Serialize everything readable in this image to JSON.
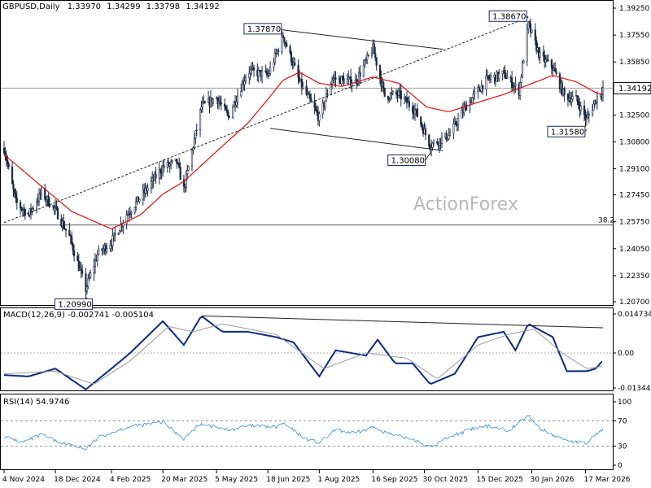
{
  "header": {
    "symbol": "GBPUSD,Daily",
    "open": "1.33970",
    "high": "1.34299",
    "low": "1.33798",
    "close": "1.34192"
  },
  "watermark": "ActionForex",
  "colors": {
    "candles": "#1a2a44",
    "ma": "#e01010",
    "macd": "#0b2a80",
    "signal": "#9a9a9a",
    "rsi": "#3a8fd0",
    "trendlines": "#222222"
  },
  "chart_data": [
    {
      "type": "candlestick",
      "title": "GBPUSD,Daily",
      "ylim": [
        1.195,
        1.395
      ],
      "yticks": [
        "1.39250",
        "1.37550",
        "1.35850",
        "1.34150",
        "1.32500",
        "1.30800",
        "1.29100",
        "1.27450",
        "1.25750",
        "1.24050",
        "1.22350",
        "1.20700"
      ],
      "last_price": "1.34192",
      "fib_level": {
        "label": "38.2",
        "value": 1.2555
      },
      "annotations": [
        {
          "text": "1.37870",
          "date": "2025-07-01",
          "value": 1.3787
        },
        {
          "text": "1.38670",
          "date": "2026-01-27",
          "value": 1.3867
        },
        {
          "text": "1.30080",
          "date": "2025-11-04",
          "value": 1.3008
        },
        {
          "text": "1.31580",
          "date": "2026-03-18",
          "value": 1.3158
        },
        {
          "text": "1.20990",
          "date": "2025-01-13",
          "value": 1.2099
        }
      ],
      "close_path": [
        [
          "2024-11-04",
          1.304
        ],
        [
          "2024-11-14",
          1.27
        ],
        [
          "2024-11-25",
          1.262
        ],
        [
          "2024-12-06",
          1.276
        ],
        [
          "2024-12-18",
          1.265
        ],
        [
          "2024-12-30",
          1.248
        ],
        [
          "2025-01-13",
          1.215
        ],
        [
          "2025-01-23",
          1.237
        ],
        [
          "2025-02-04",
          1.245
        ],
        [
          "2025-02-17",
          1.262
        ],
        [
          "2025-03-03",
          1.275
        ],
        [
          "2025-03-20",
          1.292
        ],
        [
          "2025-04-01",
          1.295
        ],
        [
          "2025-04-07",
          1.278
        ],
        [
          "2025-04-22",
          1.33
        ],
        [
          "2025-05-05",
          1.336
        ],
        [
          "2025-05-15",
          1.324
        ],
        [
          "2025-06-01",
          1.353
        ],
        [
          "2025-06-18",
          1.35
        ],
        [
          "2025-07-01",
          1.375
        ],
        [
          "2025-07-15",
          1.346
        ],
        [
          "2025-08-01",
          1.323
        ],
        [
          "2025-08-12",
          1.348
        ],
        [
          "2025-09-01",
          1.346
        ],
        [
          "2025-09-16",
          1.367
        ],
        [
          "2025-09-26",
          1.337
        ],
        [
          "2025-10-08",
          1.338
        ],
        [
          "2025-10-22",
          1.328
        ],
        [
          "2025-11-04",
          1.306
        ],
        [
          "2025-11-20",
          1.312
        ],
        [
          "2025-12-05",
          1.331
        ],
        [
          "2025-12-22",
          1.347
        ],
        [
          "2026-01-06",
          1.351
        ],
        [
          "2026-01-19",
          1.34
        ],
        [
          "2026-01-27",
          1.382
        ],
        [
          "2026-02-06",
          1.362
        ],
        [
          "2026-02-17",
          1.355
        ],
        [
          "2026-02-27",
          1.337
        ],
        [
          "2026-03-09",
          1.335
        ],
        [
          "2026-03-18",
          1.322
        ],
        [
          "2026-03-26",
          1.335
        ],
        [
          "2026-04-01",
          1.342
        ]
      ],
      "ma_path": [
        [
          "2024-11-04",
          1.3
        ],
        [
          "2024-12-06",
          1.28
        ],
        [
          "2025-01-01",
          1.264
        ],
        [
          "2025-02-04",
          1.253
        ],
        [
          "2025-03-01",
          1.262
        ],
        [
          "2025-03-20",
          1.275
        ],
        [
          "2025-04-07",
          1.283
        ],
        [
          "2025-05-05",
          1.302
        ],
        [
          "2025-06-01",
          1.32
        ],
        [
          "2025-06-18",
          1.335
        ],
        [
          "2025-07-01",
          1.347
        ],
        [
          "2025-07-15",
          1.352
        ],
        [
          "2025-08-01",
          1.345
        ],
        [
          "2025-08-20",
          1.343
        ],
        [
          "2025-09-16",
          1.349
        ],
        [
          "2025-10-08",
          1.345
        ],
        [
          "2025-11-01",
          1.33
        ],
        [
          "2025-11-20",
          1.327
        ],
        [
          "2025-12-15",
          1.333
        ],
        [
          "2026-01-06",
          1.338
        ],
        [
          "2026-01-27",
          1.344
        ],
        [
          "2026-02-17",
          1.35
        ],
        [
          "2026-03-09",
          1.346
        ],
        [
          "2026-03-26",
          1.339
        ],
        [
          "2026-04-01",
          1.338
        ]
      ],
      "trendlines": [
        {
          "from": [
            "2024-11-04",
            1.257
          ],
          "to": [
            "2026-01-27",
            1.3867
          ],
          "style": "dotted"
        },
        {
          "from": [
            "2025-07-01",
            1.3787
          ],
          "to": [
            "2025-11-15",
            1.3665
          ],
          "style": "solid"
        },
        {
          "from": [
            "2025-06-20",
            1.3165
          ],
          "to": [
            "2025-11-15",
            1.3025
          ],
          "style": "solid"
        }
      ]
    },
    {
      "type": "line",
      "title": "MACD(12,26,9) -0.002741 -0.005104",
      "yticks": [
        "0.014734",
        "0.00",
        "-0.013442"
      ],
      "ylim": [
        -0.0175,
        0.0175
      ],
      "series": [
        {
          "name": "MACD",
          "points": [
            [
              "2024-11-04",
              -0.0085
            ],
            [
              "2024-11-25",
              -0.009
            ],
            [
              "2024-12-18",
              -0.006
            ],
            [
              "2025-01-13",
              -0.014
            ],
            [
              "2025-02-04",
              -0.006
            ],
            [
              "2025-02-20",
              0.0
            ],
            [
              "2025-03-20",
              0.012
            ],
            [
              "2025-04-07",
              0.003
            ],
            [
              "2025-04-22",
              0.014
            ],
            [
              "2025-05-10",
              0.008
            ],
            [
              "2025-06-01",
              0.008
            ],
            [
              "2025-06-25",
              0.006
            ],
            [
              "2025-07-10",
              0.004
            ],
            [
              "2025-08-01",
              -0.009
            ],
            [
              "2025-08-15",
              0.001
            ],
            [
              "2025-09-10",
              -0.001
            ],
            [
              "2025-09-20",
              0.005
            ],
            [
              "2025-10-05",
              -0.004
            ],
            [
              "2025-10-20",
              -0.004
            ],
            [
              "2025-11-04",
              -0.012
            ],
            [
              "2025-11-25",
              -0.008
            ],
            [
              "2025-12-15",
              0.006
            ],
            [
              "2026-01-06",
              0.008
            ],
            [
              "2026-01-16",
              0.001
            ],
            [
              "2026-01-27",
              0.011
            ],
            [
              "2026-02-17",
              0.006
            ],
            [
              "2026-03-01",
              -0.007
            ],
            [
              "2026-03-18",
              -0.007
            ],
            [
              "2026-03-26",
              -0.006
            ],
            [
              "2026-04-01",
              -0.0027
            ]
          ]
        },
        {
          "name": "Signal",
          "points": [
            [
              "2024-11-04",
              -0.008
            ],
            [
              "2024-12-18",
              -0.007
            ],
            [
              "2025-01-20",
              -0.012
            ],
            [
              "2025-02-20",
              -0.003
            ],
            [
              "2025-03-25",
              0.01
            ],
            [
              "2025-04-15",
              0.008
            ],
            [
              "2025-05-10",
              0.011
            ],
            [
              "2025-06-25",
              0.007
            ],
            [
              "2025-08-05",
              -0.006
            ],
            [
              "2025-09-10",
              0.0
            ],
            [
              "2025-10-15",
              -0.002
            ],
            [
              "2025-11-10",
              -0.01
            ],
            [
              "2025-12-15",
              0.003
            ],
            [
              "2026-01-10",
              0.007
            ],
            [
              "2026-02-01",
              0.009
            ],
            [
              "2026-02-25",
              0.0
            ],
            [
              "2026-03-18",
              -0.006
            ],
            [
              "2026-04-01",
              -0.0051
            ]
          ]
        }
      ],
      "trendline": {
        "from": [
          "2025-04-22",
          0.014
        ],
        "to": [
          "2026-04-01",
          0.0095
        ]
      }
    },
    {
      "type": "line",
      "title": "RSI(14) 54.9746",
      "yticks": [
        "100",
        "70",
        "30",
        "0"
      ],
      "ylim": [
        0,
        100
      ],
      "levels": [
        70,
        30
      ],
      "series": [
        {
          "name": "RSI(14)",
          "points": [
            [
              "2024-11-04",
              45
            ],
            [
              "2024-11-20",
              36
            ],
            [
              "2024-12-06",
              48
            ],
            [
              "2024-12-18",
              38
            ],
            [
              "2025-01-13",
              26
            ],
            [
              "2025-01-25",
              45
            ],
            [
              "2025-02-17",
              60
            ],
            [
              "2025-03-20",
              68
            ],
            [
              "2025-04-07",
              42
            ],
            [
              "2025-04-22",
              66
            ],
            [
              "2025-05-15",
              55
            ],
            [
              "2025-06-01",
              62
            ],
            [
              "2025-06-25",
              60
            ],
            [
              "2025-07-01",
              66
            ],
            [
              "2025-07-20",
              42
            ],
            [
              "2025-08-01",
              35
            ],
            [
              "2025-08-15",
              56
            ],
            [
              "2025-09-01",
              50
            ],
            [
              "2025-09-16",
              60
            ],
            [
              "2025-10-05",
              46
            ],
            [
              "2025-10-20",
              42
            ],
            [
              "2025-11-04",
              28
            ],
            [
              "2025-11-20",
              45
            ],
            [
              "2025-12-10",
              57
            ],
            [
              "2025-12-25",
              62
            ],
            [
              "2026-01-10",
              55
            ],
            [
              "2026-01-27",
              78
            ],
            [
              "2026-02-06",
              58
            ],
            [
              "2026-02-20",
              45
            ],
            [
              "2026-03-05",
              38
            ],
            [
              "2026-03-18",
              34
            ],
            [
              "2026-03-26",
              50
            ],
            [
              "2026-04-01",
              55
            ]
          ]
        }
      ]
    }
  ],
  "x_axis": {
    "labels": [
      "4 Nov 2024",
      "18 Dec 2024",
      "4 Feb 2025",
      "20 Mar 2025",
      "5 May 2025",
      "18 Jun 2025",
      "1 Aug 2025",
      "16 Sep 2025",
      "30 Oct 2025",
      "15 Dec 2025",
      "30 Jan 2026",
      "17 Mar 2026"
    ],
    "dates": [
      "2024-11-04",
      "2024-12-18",
      "2025-02-04",
      "2025-03-20",
      "2025-05-05",
      "2025-06-18",
      "2025-08-01",
      "2025-09-16",
      "2025-10-30",
      "2025-12-15",
      "2026-01-30",
      "2026-03-17"
    ]
  }
}
